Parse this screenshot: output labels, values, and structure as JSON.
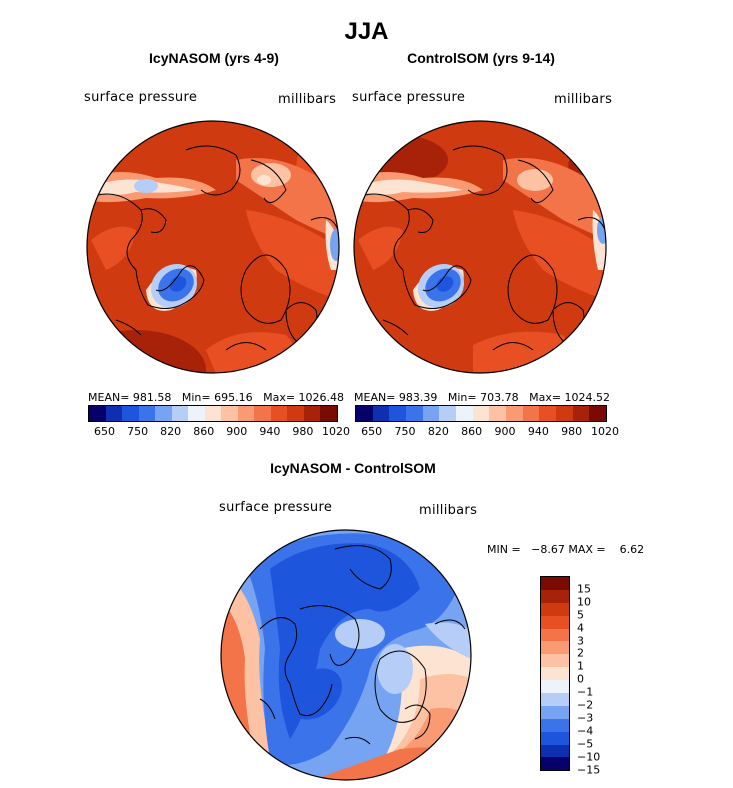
{
  "title": "JJA",
  "panels": {
    "left": {
      "title": "IcyNASOM (yrs 4-9)",
      "variable": "surface pressure",
      "units": "millibars",
      "stats": "MEAN= 981.58   Min= 695.16   Max= 1026.48",
      "ticks": [
        "650",
        "750",
        "820",
        "860",
        "900",
        "940",
        "980",
        "1020"
      ]
    },
    "right": {
      "title": "ControlSOM (yrs 9-14)",
      "variable": "surface pressure",
      "units": "millibars",
      "stats": "MEAN= 983.39   Min= 703.78   Max= 1024.52",
      "ticks": [
        "650",
        "750",
        "820",
        "860",
        "900",
        "940",
        "980",
        "1020"
      ]
    },
    "diff": {
      "title": "IcyNASOM - ControlSOM",
      "variable": "surface pressure",
      "units": "millibars",
      "stats": "MIN =   −8.67 MAX =    6.62",
      "levels": [
        "15",
        "10",
        "5",
        "4",
        "3",
        "2",
        "1",
        "0",
        "−1",
        "−2",
        "−3",
        "−4",
        "−5",
        "−10",
        "−15"
      ]
    }
  },
  "colors": {
    "abs_scale": [
      "#08006a",
      "#0d2fb0",
      "#1d55dd",
      "#3b74ea",
      "#76a3f2",
      "#b5cdf7",
      "#eef3fb",
      "#fde3d1",
      "#fcc2a3",
      "#fa9a72",
      "#f37449",
      "#e84f22",
      "#cf3a10",
      "#a8220a",
      "#7a0b02"
    ],
    "diff_scale": [
      "#7a0b02",
      "#a8220a",
      "#cf3a10",
      "#e84f22",
      "#f37449",
      "#fa9a72",
      "#fcc2a3",
      "#fde3d1",
      "#eef3fb",
      "#b5cdf7",
      "#76a3f2",
      "#3b74ea",
      "#1d55dd",
      "#0d2fb0",
      "#08006a"
    ]
  }
}
